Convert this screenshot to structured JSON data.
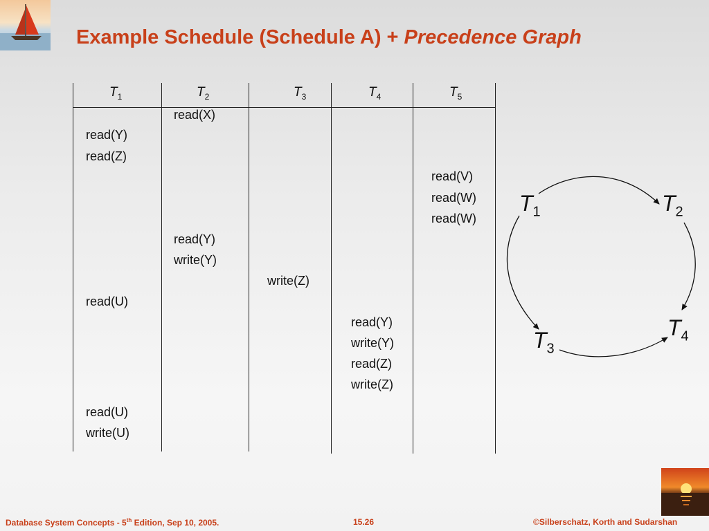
{
  "slide": {
    "title_main": "Example Schedule (Schedule A) + ",
    "title_italic": "Precedence Graph"
  },
  "schedule": {
    "headers": [
      {
        "name": "T",
        "sub": "1"
      },
      {
        "name": "T",
        "sub": "2"
      },
      {
        "name": "T",
        "sub": "3"
      },
      {
        "name": "T",
        "sub": "4"
      },
      {
        "name": "T",
        "sub": "5"
      }
    ],
    "operations": [
      {
        "txn": 2,
        "op": "read(X)"
      },
      {
        "txn": 1,
        "op": "read(Y)"
      },
      {
        "txn": 1,
        "op": "read(Z)"
      },
      {
        "txn": 5,
        "op": "read(V)"
      },
      {
        "txn": 5,
        "op": "read(W)"
      },
      {
        "txn": 5,
        "op": "read(W)"
      },
      {
        "txn": 2,
        "op": "read(Y)"
      },
      {
        "txn": 2,
        "op": "write(Y)"
      },
      {
        "txn": 3,
        "op": "write(Z)"
      },
      {
        "txn": 1,
        "op": "read(U)"
      },
      {
        "txn": 4,
        "op": "read(Y)"
      },
      {
        "txn": 4,
        "op": "write(Y)"
      },
      {
        "txn": 4,
        "op": "read(Z)"
      },
      {
        "txn": 4,
        "op": "write(Z)"
      },
      {
        "txn": 1,
        "op": "read(U)"
      },
      {
        "txn": 1,
        "op": "write(U)"
      }
    ]
  },
  "graph": {
    "nodes": [
      {
        "id": "T1",
        "name": "T",
        "sub": "1"
      },
      {
        "id": "T2",
        "name": "T",
        "sub": "2"
      },
      {
        "id": "T3",
        "name": "T",
        "sub": "3"
      },
      {
        "id": "T4",
        "name": "T",
        "sub": "4"
      }
    ],
    "edges": [
      {
        "from": "T1",
        "to": "T2"
      },
      {
        "from": "T2",
        "to": "T4"
      },
      {
        "from": "T1",
        "to": "T3"
      },
      {
        "from": "T3",
        "to": "T4"
      }
    ]
  },
  "footer": {
    "left_a": "Database System Concepts - 5",
    "left_sup": "th",
    "left_b": " Edition, Sep 10, 2005.",
    "center": "15.26",
    "right": "©Silberschatz, Korth and Sudarshan"
  }
}
